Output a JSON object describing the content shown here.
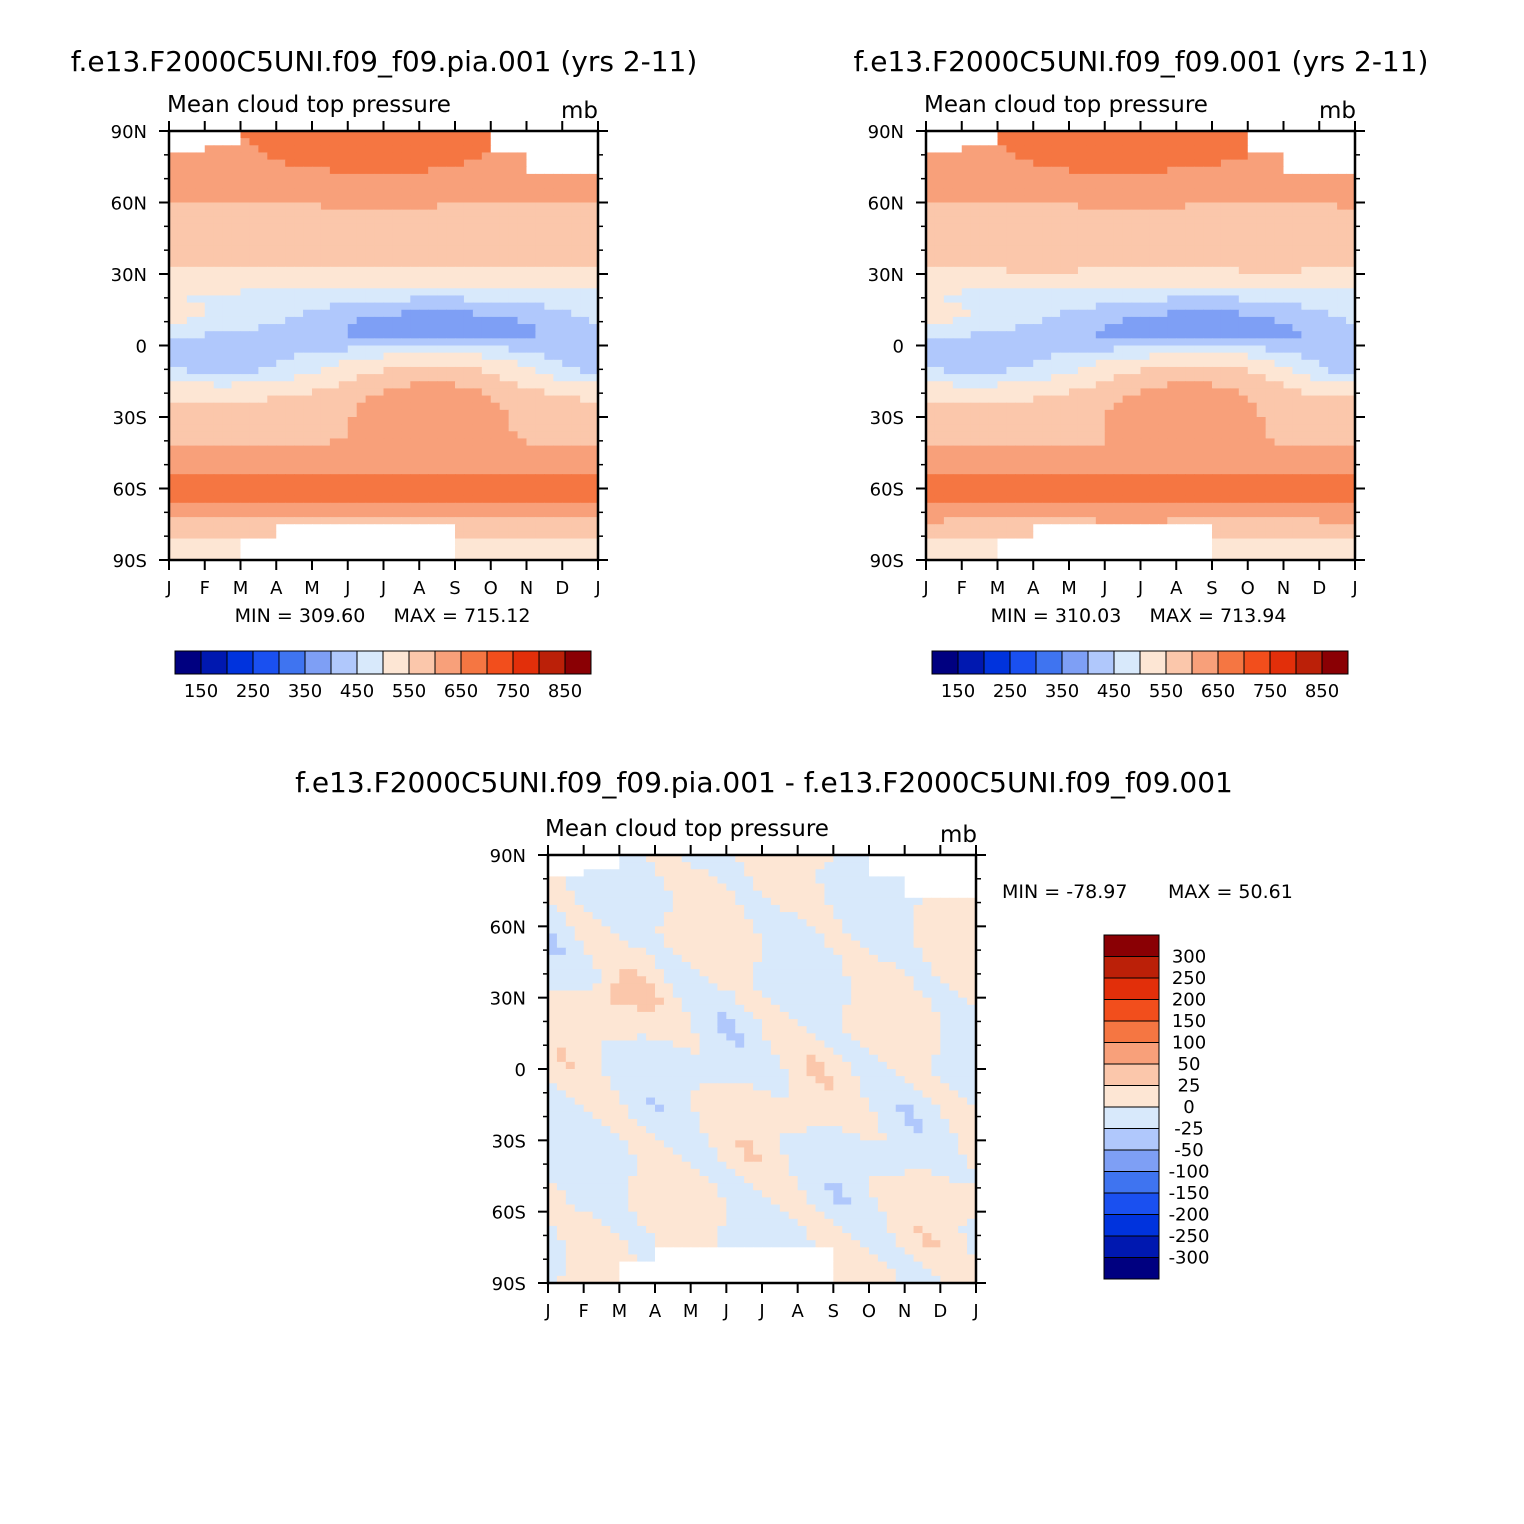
{
  "chart_data": [
    {
      "type": "heatmap",
      "title": "f.e13.F2000C5UNI.f09_f09.pia.001 (yrs 2-11)",
      "subtitle": "Mean cloud top pressure",
      "units": "mb",
      "x_ticks": [
        "J",
        "F",
        "M",
        "A",
        "M",
        "J",
        "J",
        "A",
        "S",
        "O",
        "N",
        "D",
        "J"
      ],
      "y_ticks": [
        "90N",
        "60N",
        "30N",
        "0",
        "30S",
        "60S",
        "90S"
      ],
      "min_label": "MIN = 309.60",
      "max_label": "MAX = 715.12",
      "min": 309.6,
      "max": 715.12,
      "colorbar_labels": [
        "150",
        "250",
        "350",
        "450",
        "550",
        "650",
        "750",
        "850"
      ],
      "levels": [
        100,
        150,
        200,
        250,
        300,
        350,
        400,
        450,
        500,
        550,
        600,
        650,
        700,
        750,
        800,
        850,
        900
      ],
      "colors": [
        "#000080",
        "#0018b0",
        "#0033dd",
        "#1a50f0",
        "#3f74f0",
        "#7e9ff5",
        "#b0c8fc",
        "#d8e9fb",
        "#fde6d4",
        "#fbc7ab",
        "#f8a07a",
        "#f57642",
        "#f24e1c",
        "#e22f0a",
        "#bb2008",
        "#8a0004"
      ]
    },
    {
      "type": "heatmap",
      "title": "f.e13.F2000C5UNI.f09_f09.001 (yrs 2-11)",
      "subtitle": "Mean cloud top pressure",
      "units": "mb",
      "x_ticks": [
        "J",
        "F",
        "M",
        "A",
        "M",
        "J",
        "J",
        "A",
        "S",
        "O",
        "N",
        "D",
        "J"
      ],
      "y_ticks": [
        "90N",
        "60N",
        "30N",
        "0",
        "30S",
        "60S",
        "90S"
      ],
      "min_label": "MIN = 310.03",
      "max_label": "MAX = 713.94",
      "min": 310.03,
      "max": 713.94,
      "colorbar_labels": [
        "150",
        "250",
        "350",
        "450",
        "550",
        "650",
        "750",
        "850"
      ],
      "levels": [
        100,
        150,
        200,
        250,
        300,
        350,
        400,
        450,
        500,
        550,
        600,
        650,
        700,
        750,
        800,
        850,
        900
      ],
      "colors": [
        "#000080",
        "#0018b0",
        "#0033dd",
        "#1a50f0",
        "#3f74f0",
        "#7e9ff5",
        "#b0c8fc",
        "#d8e9fb",
        "#fde6d4",
        "#fbc7ab",
        "#f8a07a",
        "#f57642",
        "#f24e1c",
        "#e22f0a",
        "#bb2008",
        "#8a0004"
      ]
    },
    {
      "type": "heatmap",
      "title": "f.e13.F2000C5UNI.f09_f09.pia.001 - f.e13.F2000C5UNI.f09_f09.001",
      "subtitle": "Mean cloud top pressure",
      "units": "mb",
      "x_ticks": [
        "J",
        "F",
        "M",
        "A",
        "M",
        "J",
        "J",
        "A",
        "S",
        "O",
        "N",
        "D",
        "J"
      ],
      "y_ticks": [
        "90N",
        "60N",
        "30N",
        "0",
        "30S",
        "60S",
        "90S"
      ],
      "min_label": "MIN = -78.97",
      "max_label": "MAX =  50.61",
      "min": -78.97,
      "max": 50.61,
      "colorbar_labels": [
        "300",
        "250",
        "200",
        "150",
        "100",
        "50",
        "25",
        "0",
        "-25",
        "-50",
        "-100",
        "-150",
        "-200",
        "-250",
        "-300"
      ],
      "levels": [
        -350,
        -300,
        -250,
        -200,
        -150,
        -100,
        -50,
        -25,
        0,
        25,
        50,
        100,
        150,
        200,
        250,
        300,
        350
      ],
      "colors": [
        "#000080",
        "#0018b0",
        "#0033dd",
        "#1a50f0",
        "#3f74f0",
        "#7e9ff5",
        "#b0c8fc",
        "#d8e9fb",
        "#fde6d4",
        "#fbc7ab",
        "#f8a07a",
        "#f57642",
        "#f24e1c",
        "#e22f0a",
        "#bb2008",
        "#8a0004"
      ]
    }
  ]
}
